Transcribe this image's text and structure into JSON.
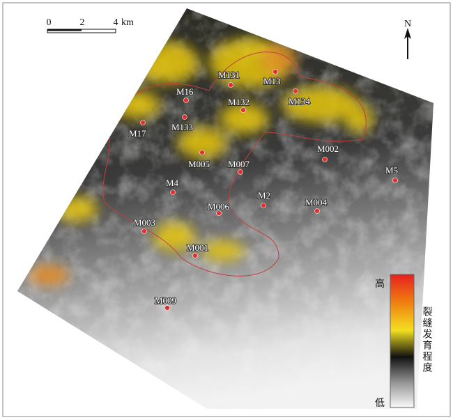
{
  "scale_bar": {
    "labels": [
      "0",
      "2",
      "4"
    ],
    "unit": "km"
  },
  "north": "N",
  "wells": [
    "M131",
    "M13",
    "M134",
    "M16",
    "M132",
    "M17",
    "M133",
    "M005",
    "M007",
    "M002",
    "M5",
    "M4",
    "M2",
    "M006",
    "M004",
    "M003",
    "M001",
    "M009"
  ],
  "legend": {
    "high": "高",
    "low": "低",
    "title": "裂缝发育程度"
  }
}
